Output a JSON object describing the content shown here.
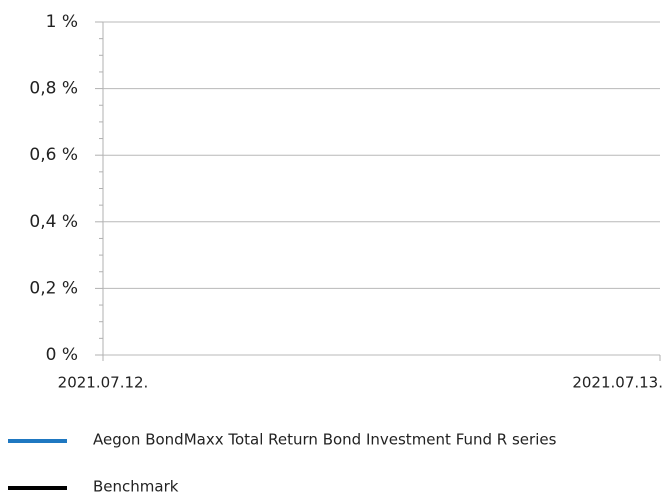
{
  "chart_data": {
    "type": "line",
    "x": [
      "2021.07.12.",
      "2021.07.13."
    ],
    "series": [
      {
        "name": "Aegon BondMaxx Total Return Bond Investment Fund R series",
        "color": "#1f78c1",
        "values": [
          null,
          null
        ]
      },
      {
        "name": "Benchmark",
        "color": "#000000",
        "values": [
          null,
          null
        ]
      }
    ],
    "ylim": [
      0,
      1
    ],
    "yticks": [
      {
        "value": 0,
        "label": "0 %"
      },
      {
        "value": 0.2,
        "label": "0,2 %"
      },
      {
        "value": 0.4,
        "label": "0,4 %"
      },
      {
        "value": 0.6,
        "label": "0,6 %"
      },
      {
        "value": 0.8,
        "label": "0,8 %"
      },
      {
        "value": 1,
        "label": "1 %"
      }
    ],
    "grid": true
  }
}
